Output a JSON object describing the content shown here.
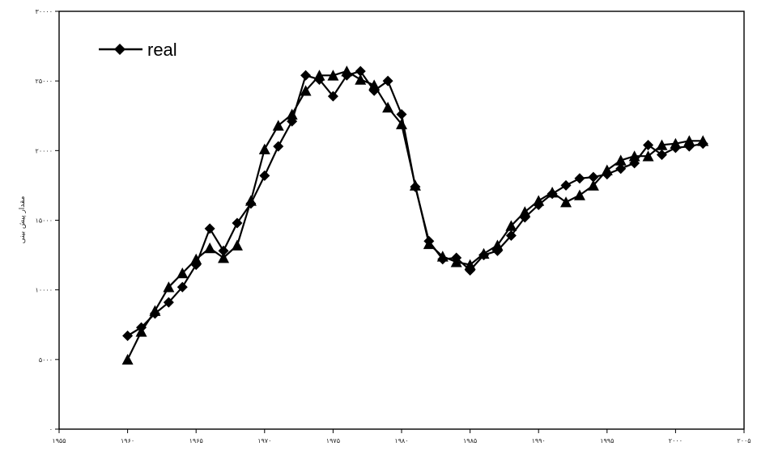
{
  "chart_data": {
    "type": "line",
    "title": "",
    "xlabel": "",
    "ylabel": "مقدار پیش بینی",
    "xlim": [
      1955,
      2005
    ],
    "ylim": [
      0,
      30000
    ],
    "x_tick_labels": [
      "۱۹۵۵",
      "۱۹۶۰",
      "۱۹۶۵",
      "۱۹۷۰",
      "۱۹۷۵",
      "۱۹۸۰",
      "۱۹۸۵",
      "۱۹۹۰",
      "۱۹۹۵",
      "۲۰۰۰",
      "۲۰۰۵"
    ],
    "y_tick_labels": [
      "۰",
      "۵۰۰۰",
      "۱۰۰۰۰",
      "۱۵۰۰۰",
      "۲۰۰۰۰",
      "۲۵۰۰۰",
      "۳۰۰۰۰"
    ],
    "x_ticks": [
      1955,
      1960,
      1965,
      1970,
      1975,
      1980,
      1985,
      1990,
      1995,
      2000,
      2005
    ],
    "y_ticks": [
      0,
      5000,
      10000,
      15000,
      20000,
      25000,
      30000
    ],
    "grid": false,
    "legend_position": "top-left",
    "legend": [
      {
        "label": "real",
        "marker": "diamond"
      }
    ],
    "series": [
      {
        "name": "real",
        "marker": "diamond",
        "color": "#000000",
        "x": [
          1960,
          1961,
          1962,
          1963,
          1964,
          1965,
          1966,
          1967,
          1968,
          1969,
          1970,
          1971,
          1972,
          1973,
          1974,
          1975,
          1976,
          1977,
          1978,
          1979,
          1980,
          1981,
          1982,
          1983,
          1984,
          1985,
          1986,
          1987,
          1988,
          1989,
          1990,
          1991,
          1992,
          1993,
          1994,
          1995,
          1996,
          1997,
          1998,
          1999,
          2000,
          2001,
          2002
        ],
        "values": [
          6700,
          7300,
          8300,
          9100,
          10200,
          11800,
          14400,
          12800,
          14800,
          16200,
          18200,
          20300,
          22100,
          25400,
          25100,
          23900,
          25400,
          25700,
          24300,
          25000,
          22600,
          17400,
          13500,
          12200,
          12300,
          11400,
          12500,
          12800,
          13900,
          15200,
          16100,
          16900,
          17500,
          18000,
          18100,
          18300,
          18700,
          19100,
          20400,
          19700,
          20200,
          20300,
          20500
        ]
      },
      {
        "marker": "triangle",
        "color": "#000000",
        "x": [
          1960,
          1961,
          1962,
          1963,
          1964,
          1965,
          1966,
          1967,
          1968,
          1969,
          1970,
          1971,
          1972,
          1973,
          1974,
          1975,
          1976,
          1977,
          1978,
          1979,
          1980,
          1981,
          1982,
          1983,
          1984,
          1985,
          1986,
          1987,
          1988,
          1989,
          1990,
          1991,
          1992,
          1993,
          1994,
          1995,
          1996,
          1997,
          1998,
          1999,
          2000,
          2001,
          2002
        ],
        "values": [
          5000,
          7000,
          8500,
          10200,
          11200,
          12200,
          13000,
          12300,
          13200,
          16400,
          20100,
          21800,
          22600,
          24300,
          25400,
          25400,
          25700,
          25100,
          24700,
          23100,
          21900,
          17500,
          13300,
          12400,
          12000,
          11800,
          12600,
          13200,
          14600,
          15600,
          16400,
          17000,
          16300,
          16800,
          17500,
          18600,
          19300,
          19600,
          19600,
          20400,
          20500,
          20700,
          20700
        ]
      }
    ]
  }
}
